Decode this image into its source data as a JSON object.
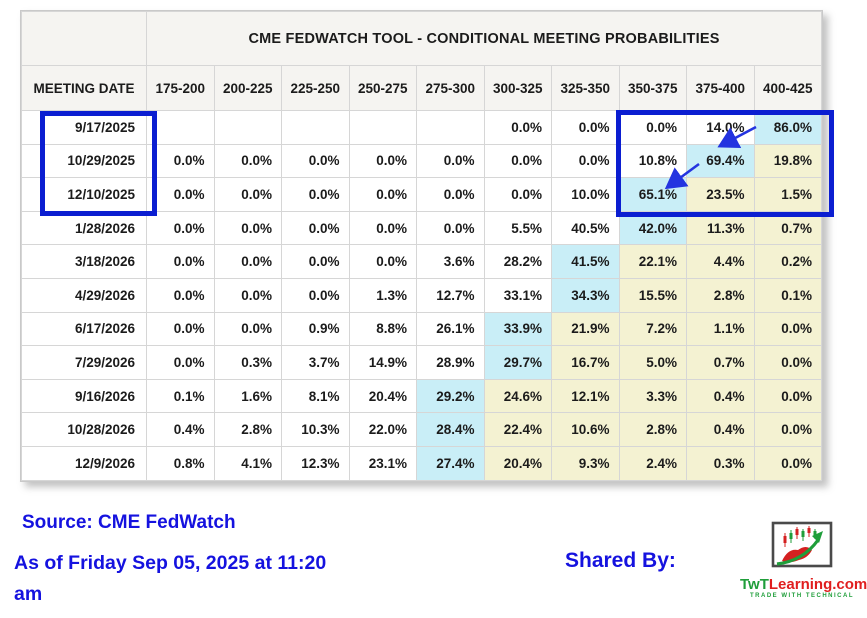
{
  "header": {
    "title": "CME FEDWATCH TOOL - CONDITIONAL MEETING PROBABILITIES"
  },
  "table": {
    "corner_label": "MEETING DATE",
    "rate_columns": [
      "175-200",
      "200-225",
      "225-250",
      "250-275",
      "275-300",
      "300-325",
      "325-350",
      "350-375",
      "375-400",
      "400-425"
    ],
    "rows": [
      {
        "date": "9/17/2025",
        "cells": [
          "",
          "",
          "",
          "",
          "",
          "0.0%",
          "0.0%",
          "0.0%",
          "14.0%",
          "86.0%"
        ],
        "hl": [
          "",
          "",
          "",
          "",
          "",
          "",
          "",
          "",
          "",
          "c"
        ]
      },
      {
        "date": "10/29/2025",
        "cells": [
          "0.0%",
          "0.0%",
          "0.0%",
          "0.0%",
          "0.0%",
          "0.0%",
          "0.0%",
          "10.8%",
          "69.4%",
          "19.8%"
        ],
        "hl": [
          "",
          "",
          "",
          "",
          "",
          "",
          "",
          "",
          "c",
          "y"
        ]
      },
      {
        "date": "12/10/2025",
        "cells": [
          "0.0%",
          "0.0%",
          "0.0%",
          "0.0%",
          "0.0%",
          "0.0%",
          "10.0%",
          "65.1%",
          "23.5%",
          "1.5%"
        ],
        "hl": [
          "",
          "",
          "",
          "",
          "",
          "",
          "",
          "c",
          "y",
          "y"
        ]
      },
      {
        "date": "1/28/2026",
        "cells": [
          "0.0%",
          "0.0%",
          "0.0%",
          "0.0%",
          "0.0%",
          "5.5%",
          "40.5%",
          "42.0%",
          "11.3%",
          "0.7%"
        ],
        "hl": [
          "",
          "",
          "",
          "",
          "",
          "",
          "",
          "c",
          "y",
          "y"
        ]
      },
      {
        "date": "3/18/2026",
        "cells": [
          "0.0%",
          "0.0%",
          "0.0%",
          "0.0%",
          "3.6%",
          "28.2%",
          "41.5%",
          "22.1%",
          "4.4%",
          "0.2%"
        ],
        "hl": [
          "",
          "",
          "",
          "",
          "",
          "",
          "c",
          "y",
          "y",
          "y"
        ]
      },
      {
        "date": "4/29/2026",
        "cells": [
          "0.0%",
          "0.0%",
          "0.0%",
          "1.3%",
          "12.7%",
          "33.1%",
          "34.3%",
          "15.5%",
          "2.8%",
          "0.1%"
        ],
        "hl": [
          "",
          "",
          "",
          "",
          "",
          "",
          "c",
          "y",
          "y",
          "y"
        ]
      },
      {
        "date": "6/17/2026",
        "cells": [
          "0.0%",
          "0.0%",
          "0.9%",
          "8.8%",
          "26.1%",
          "33.9%",
          "21.9%",
          "7.2%",
          "1.1%",
          "0.0%"
        ],
        "hl": [
          "",
          "",
          "",
          "",
          "",
          "c",
          "y",
          "y",
          "y",
          "y"
        ]
      },
      {
        "date": "7/29/2026",
        "cells": [
          "0.0%",
          "0.3%",
          "3.7%",
          "14.9%",
          "28.9%",
          "29.7%",
          "16.7%",
          "5.0%",
          "0.7%",
          "0.0%"
        ],
        "hl": [
          "",
          "",
          "",
          "",
          "",
          "c",
          "y",
          "y",
          "y",
          "y"
        ]
      },
      {
        "date": "9/16/2026",
        "cells": [
          "0.1%",
          "1.6%",
          "8.1%",
          "20.4%",
          "29.2%",
          "24.6%",
          "12.1%",
          "3.3%",
          "0.4%",
          "0.0%"
        ],
        "hl": [
          "",
          "",
          "",
          "",
          "c",
          "y",
          "y",
          "y",
          "y",
          "y"
        ]
      },
      {
        "date": "10/28/2026",
        "cells": [
          "0.4%",
          "2.8%",
          "10.3%",
          "22.0%",
          "28.4%",
          "22.4%",
          "10.6%",
          "2.8%",
          "0.4%",
          "0.0%"
        ],
        "hl": [
          "",
          "",
          "",
          "",
          "c",
          "y",
          "y",
          "y",
          "y",
          "y"
        ]
      },
      {
        "date": "12/9/2026",
        "cells": [
          "0.8%",
          "4.1%",
          "12.3%",
          "23.1%",
          "27.4%",
          "20.4%",
          "9.3%",
          "2.4%",
          "0.3%",
          "0.0%"
        ],
        "hl": [
          "",
          "",
          "",
          "",
          "c",
          "y",
          "y",
          "y",
          "y",
          "y"
        ]
      }
    ]
  },
  "annotations": {
    "boxed_dates": [
      "9/17/2025",
      "10/29/2025",
      "12/10/2025"
    ],
    "boxed_rate_columns": [
      "350-375",
      "375-400",
      "400-425"
    ],
    "arrows": [
      {
        "from_cell": "9/17/2025 x 400-425 (86.0%)",
        "to_cell": "10/29/2025 x 375-400 (69.4%)"
      },
      {
        "from_cell": "10/29/2025 x 375-400 (69.4%)",
        "to_cell": "12/10/2025 x 350-375 (65.1%)"
      }
    ]
  },
  "footer": {
    "source": "Source: CME FedWatch",
    "as_of": "As of Friday Sep 05, 2025 at 11:20 am",
    "shared_by": "Shared By:",
    "logo_text_green": "TwT",
    "logo_text_red": "Learning.com",
    "logo_tagline": "TRADE WITH TECHNICAL"
  },
  "colors": {
    "highlight_cyan": "#c9eef7",
    "highlight_yellow": "#f4f2d2",
    "annotation_blue": "#0b1ed1",
    "footer_blue": "#1512df",
    "logo_green": "#1f9e3a",
    "logo_red": "#e01e1e"
  },
  "chart_data": {
    "type": "table",
    "title": "CME FEDWATCH TOOL - CONDITIONAL MEETING PROBABILITIES",
    "row_label": "MEETING DATE",
    "columns": [
      "175-200",
      "200-225",
      "225-250",
      "250-275",
      "275-300",
      "300-325",
      "325-350",
      "350-375",
      "375-400",
      "400-425"
    ],
    "rows": [
      "9/17/2025",
      "10/29/2025",
      "12/10/2025",
      "1/28/2026",
      "3/18/2026",
      "4/29/2026",
      "6/17/2026",
      "7/29/2026",
      "9/16/2026",
      "10/28/2026",
      "12/9/2026"
    ],
    "values_pct": [
      [
        null,
        null,
        null,
        null,
        null,
        0.0,
        0.0,
        0.0,
        14.0,
        86.0
      ],
      [
        0.0,
        0.0,
        0.0,
        0.0,
        0.0,
        0.0,
        0.0,
        10.8,
        69.4,
        19.8
      ],
      [
        0.0,
        0.0,
        0.0,
        0.0,
        0.0,
        0.0,
        10.0,
        65.1,
        23.5,
        1.5
      ],
      [
        0.0,
        0.0,
        0.0,
        0.0,
        0.0,
        5.5,
        40.5,
        42.0,
        11.3,
        0.7
      ],
      [
        0.0,
        0.0,
        0.0,
        0.0,
        3.6,
        28.2,
        41.5,
        22.1,
        4.4,
        0.2
      ],
      [
        0.0,
        0.0,
        0.0,
        1.3,
        12.7,
        33.1,
        34.3,
        15.5,
        2.8,
        0.1
      ],
      [
        0.0,
        0.0,
        0.9,
        8.8,
        26.1,
        33.9,
        21.9,
        7.2,
        1.1,
        0.0
      ],
      [
        0.0,
        0.3,
        3.7,
        14.9,
        28.9,
        29.7,
        16.7,
        5.0,
        0.7,
        0.0
      ],
      [
        0.1,
        1.6,
        8.1,
        20.4,
        29.2,
        24.6,
        12.1,
        3.3,
        0.4,
        0.0
      ],
      [
        0.4,
        2.8,
        10.3,
        22.0,
        28.4,
        22.4,
        10.6,
        2.8,
        0.4,
        0.0
      ],
      [
        0.8,
        4.1,
        12.3,
        23.1,
        27.4,
        20.4,
        9.3,
        2.4,
        0.3,
        0.0
      ]
    ]
  }
}
